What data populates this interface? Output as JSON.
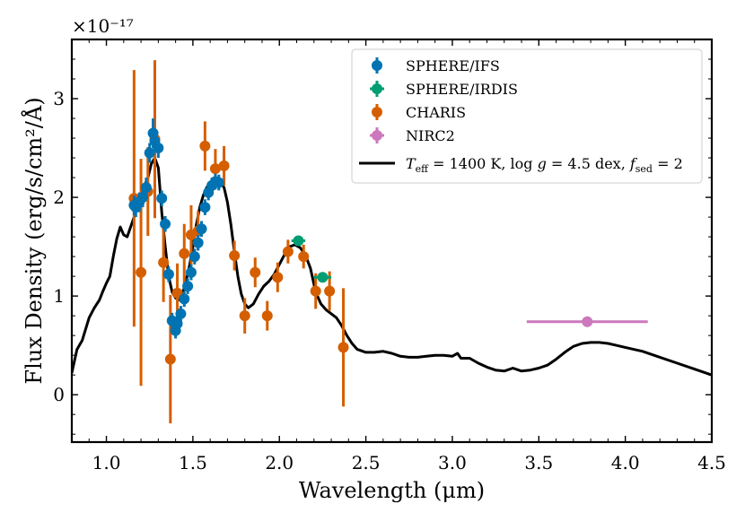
{
  "chart_data": {
    "type": "scatter",
    "xlabel": "Wavelength (μm)",
    "ylabel": "Flux Density (erg/s/cm²/Å)",
    "y_multiplier_label": "×10⁻¹⁷",
    "xlim": [
      0.8,
      4.5
    ],
    "ylim": [
      -0.48,
      3.6
    ],
    "xticks": [
      1.0,
      1.5,
      2.0,
      2.5,
      3.0,
      3.5,
      4.0,
      4.5
    ],
    "xtick_labels": [
      "1.0",
      "1.5",
      "2.0",
      "2.5",
      "3.0",
      "3.5",
      "4.0",
      "4.5"
    ],
    "yticks": [
      0,
      1,
      2,
      3
    ],
    "ytick_labels": [
      "0",
      "1",
      "2",
      "3"
    ],
    "legend_position": "top-right",
    "series": [
      {
        "name": "SPHERE/IFS",
        "color": "#0173b2",
        "points": [
          {
            "x": 1.16,
            "y": 1.92,
            "yerr": 0.1
          },
          {
            "x": 1.17,
            "y": 1.9,
            "yerr": 0.1
          },
          {
            "x": 1.19,
            "y": 1.95,
            "yerr": 0.1
          },
          {
            "x": 1.21,
            "y": 2.0,
            "yerr": 0.1
          },
          {
            "x": 1.23,
            "y": 2.1,
            "yerr": 0.1
          },
          {
            "x": 1.25,
            "y": 2.45,
            "yerr": 0.1
          },
          {
            "x": 1.27,
            "y": 2.65,
            "yerr": 0.15
          },
          {
            "x": 1.28,
            "y": 2.57,
            "yerr": 0.1
          },
          {
            "x": 1.3,
            "y": 2.5,
            "yerr": 0.1
          },
          {
            "x": 1.32,
            "y": 1.99,
            "yerr": 0.08
          },
          {
            "x": 1.34,
            "y": 1.73,
            "yerr": 0.08
          },
          {
            "x": 1.36,
            "y": 1.22,
            "yerr": 0.08
          },
          {
            "x": 1.38,
            "y": 0.75,
            "yerr": 0.08
          },
          {
            "x": 1.4,
            "y": 0.65,
            "yerr": 0.08
          },
          {
            "x": 1.41,
            "y": 0.72,
            "yerr": 0.08
          },
          {
            "x": 1.43,
            "y": 0.82,
            "yerr": 0.08
          },
          {
            "x": 1.45,
            "y": 0.97,
            "yerr": 0.08
          },
          {
            "x": 1.47,
            "y": 1.1,
            "yerr": 0.08
          },
          {
            "x": 1.49,
            "y": 1.24,
            "yerr": 0.08
          },
          {
            "x": 1.51,
            "y": 1.4,
            "yerr": 0.08
          },
          {
            "x": 1.53,
            "y": 1.54,
            "yerr": 0.08
          },
          {
            "x": 1.55,
            "y": 1.68,
            "yerr": 0.08
          },
          {
            "x": 1.57,
            "y": 1.9,
            "yerr": 0.08
          },
          {
            "x": 1.59,
            "y": 2.05,
            "yerr": 0.08
          },
          {
            "x": 1.61,
            "y": 2.12,
            "yerr": 0.08
          },
          {
            "x": 1.63,
            "y": 2.16,
            "yerr": 0.08
          },
          {
            "x": 1.65,
            "y": 2.15,
            "yerr": 0.08
          }
        ]
      },
      {
        "name": "SPHERE/IRDIS",
        "color": "#029e73",
        "points": [
          {
            "x": 2.11,
            "y": 1.56,
            "yerr": 0.03,
            "xerr": 0.04
          },
          {
            "x": 2.25,
            "y": 1.19,
            "yerr": 0.04,
            "xerr": 0.05
          }
        ]
      },
      {
        "name": "CHARIS",
        "color": "#d55e00",
        "points": [
          {
            "x": 1.16,
            "y": 1.99,
            "yerr": 1.3
          },
          {
            "x": 1.2,
            "y": 1.24,
            "yerr": 1.15
          },
          {
            "x": 1.24,
            "y": 2.06,
            "yerr": 0.45
          },
          {
            "x": 1.28,
            "y": 2.59,
            "yerr": 0.8
          },
          {
            "x": 1.33,
            "y": 1.34,
            "yerr": 0.4
          },
          {
            "x": 1.37,
            "y": 0.36,
            "yerr": 0.65
          },
          {
            "x": 1.41,
            "y": 1.03,
            "yerr": 0.3
          },
          {
            "x": 1.45,
            "y": 1.43,
            "yerr": 0.3
          },
          {
            "x": 1.49,
            "y": 1.62,
            "yerr": 0.3
          },
          {
            "x": 1.53,
            "y": 1.66,
            "yerr": 0.2
          },
          {
            "x": 1.57,
            "y": 2.52,
            "yerr": 0.25
          },
          {
            "x": 1.63,
            "y": 2.29,
            "yerr": 0.2
          },
          {
            "x": 1.68,
            "y": 2.32,
            "yerr": 0.2
          },
          {
            "x": 1.74,
            "y": 1.41,
            "yerr": 0.15
          },
          {
            "x": 1.8,
            "y": 0.8,
            "yerr": 0.18
          },
          {
            "x": 1.86,
            "y": 1.24,
            "yerr": 0.15
          },
          {
            "x": 1.93,
            "y": 0.8,
            "yerr": 0.15
          },
          {
            "x": 1.99,
            "y": 1.19,
            "yerr": 0.15
          },
          {
            "x": 2.05,
            "y": 1.45,
            "yerr": 0.12
          },
          {
            "x": 2.14,
            "y": 1.4,
            "yerr": 0.12
          },
          {
            "x": 2.21,
            "y": 1.05,
            "yerr": 0.18
          },
          {
            "x": 2.29,
            "y": 1.05,
            "yerr": 0.2
          },
          {
            "x": 2.37,
            "y": 0.48,
            "yerr": 0.6
          }
        ]
      },
      {
        "name": "NIRC2",
        "color": "#cc78bc",
        "points": [
          {
            "x": 3.78,
            "y": 0.74,
            "yerr": 0.05,
            "xerr": 0.35
          }
        ]
      }
    ],
    "model": {
      "name": "T_eff = 1400 K, log g = 4.5 dex, f_sed = 2",
      "label_parts": {
        "teff_sym": "T",
        "teff_sub": "eff",
        "teff_val": " = 1400 K, ",
        "logg_pre": "log ",
        "logg_sym": "g",
        "logg_val": " = 4.5 dex, ",
        "fsed_sym": "f",
        "fsed_sub": "sed",
        "fsed_val": " = 2"
      },
      "color": "#000000",
      "x": [
        0.8,
        0.83,
        0.86,
        0.9,
        0.93,
        0.96,
        0.98,
        1.0,
        1.02,
        1.04,
        1.06,
        1.08,
        1.1,
        1.12,
        1.14,
        1.16,
        1.18,
        1.2,
        1.22,
        1.24,
        1.26,
        1.28,
        1.3,
        1.32,
        1.34,
        1.36,
        1.38,
        1.4,
        1.42,
        1.44,
        1.46,
        1.48,
        1.5,
        1.52,
        1.54,
        1.56,
        1.58,
        1.6,
        1.62,
        1.64,
        1.66,
        1.68,
        1.7,
        1.72,
        1.74,
        1.76,
        1.78,
        1.8,
        1.82,
        1.85,
        1.88,
        1.91,
        1.94,
        1.97,
        2.0,
        2.03,
        2.06,
        2.09,
        2.12,
        2.15,
        2.18,
        2.21,
        2.24,
        2.27,
        2.3,
        2.33,
        2.36,
        2.39,
        2.42,
        2.45,
        2.5,
        2.55,
        2.6,
        2.65,
        2.7,
        2.75,
        2.8,
        2.85,
        2.9,
        2.95,
        3.0,
        3.03,
        3.05,
        3.1,
        3.15,
        3.2,
        3.25,
        3.3,
        3.35,
        3.4,
        3.45,
        3.5,
        3.55,
        3.6,
        3.65,
        3.7,
        3.75,
        3.8,
        3.85,
        3.9,
        3.95,
        4.0,
        4.1,
        4.2,
        4.3,
        4.4,
        4.5
      ],
      "y": [
        0.22,
        0.46,
        0.55,
        0.78,
        0.88,
        0.96,
        1.05,
        1.13,
        1.2,
        1.4,
        1.58,
        1.7,
        1.62,
        1.6,
        1.7,
        1.8,
        1.92,
        2.02,
        2.12,
        2.2,
        2.34,
        2.4,
        2.3,
        1.85,
        1.5,
        1.2,
        1.04,
        0.98,
        0.96,
        1.02,
        1.15,
        1.3,
        1.5,
        1.72,
        1.9,
        2.02,
        2.1,
        2.15,
        2.17,
        2.18,
        2.16,
        2.1,
        1.95,
        1.72,
        1.45,
        1.2,
        1.02,
        0.92,
        0.88,
        0.92,
        1.02,
        1.1,
        1.15,
        1.22,
        1.32,
        1.42,
        1.5,
        1.52,
        1.49,
        1.42,
        1.28,
        1.04,
        0.92,
        0.86,
        0.82,
        0.78,
        0.7,
        0.6,
        0.52,
        0.46,
        0.43,
        0.43,
        0.44,
        0.42,
        0.39,
        0.38,
        0.38,
        0.39,
        0.4,
        0.4,
        0.39,
        0.42,
        0.37,
        0.37,
        0.32,
        0.28,
        0.25,
        0.24,
        0.27,
        0.24,
        0.25,
        0.27,
        0.3,
        0.36,
        0.43,
        0.49,
        0.52,
        0.53,
        0.53,
        0.52,
        0.5,
        0.48,
        0.44,
        0.38,
        0.32,
        0.26,
        0.2
      ]
    }
  }
}
